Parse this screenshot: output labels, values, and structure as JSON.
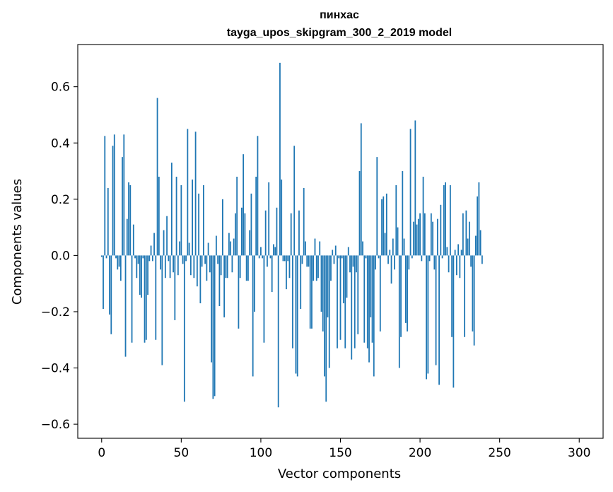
{
  "chart_data": {
    "type": "bar",
    "title": "пинхас",
    "subtitle": "tayga_upos_skipgram_300_2_2019 model",
    "xlabel": "Vector components",
    "ylabel": "Components values",
    "xlim": [
      -15,
      315
    ],
    "ylim": [
      -0.65,
      0.75
    ],
    "xticks": [
      0,
      50,
      100,
      150,
      200,
      250,
      300
    ],
    "xtick_labels": [
      "0",
      "50",
      "100",
      "150",
      "200",
      "250",
      "300"
    ],
    "yticks": [
      -0.6,
      -0.4,
      -0.2,
      0.0,
      0.2,
      0.4,
      0.6
    ],
    "ytick_labels": [
      "−0.6",
      "−0.4",
      "−0.2",
      "0.0",
      "0.2",
      "0.4",
      "0.6"
    ],
    "grid": false,
    "color": "#1f77b4",
    "values": [
      -0.005,
      -0.19,
      0.425,
      -0.01,
      0.24,
      -0.21,
      -0.28,
      0.39,
      0.43,
      -0.01,
      -0.05,
      -0.04,
      -0.09,
      0.35,
      0.43,
      -0.36,
      0.13,
      0.26,
      0.25,
      -0.31,
      0.11,
      -0.01,
      -0.08,
      -0.03,
      -0.14,
      -0.15,
      -0.01,
      -0.31,
      -0.3,
      -0.14,
      -0.02,
      0.035,
      -0.02,
      0.08,
      -0.3,
      0.56,
      0.28,
      -0.05,
      -0.39,
      0.09,
      -0.08,
      0.14,
      -0.02,
      -0.08,
      0.33,
      -0.06,
      -0.23,
      0.28,
      -0.07,
      0.05,
      0.25,
      -0.03,
      -0.52,
      -0.02,
      0.45,
      0.045,
      -0.07,
      0.27,
      -0.08,
      0.44,
      -0.11,
      0.22,
      -0.17,
      -0.04,
      0.25,
      -0.03,
      -0.09,
      0.045,
      -0.06,
      -0.38,
      -0.51,
      -0.5,
      0.07,
      -0.03,
      -0.18,
      -0.07,
      0.2,
      -0.22,
      -0.08,
      -0.08,
      0.08,
      0.05,
      -0.06,
      0.06,
      0.15,
      0.28,
      -0.26,
      -0.08,
      0.17,
      0.36,
      0.15,
      -0.09,
      -0.09,
      0.09,
      0.22,
      -0.43,
      -0.2,
      0.28,
      0.425,
      -0.01,
      0.03,
      -0.01,
      -0.31,
      0.16,
      -0.04,
      0.26,
      -0.01,
      -0.13,
      0.04,
      0.03,
      0.17,
      -0.54,
      0.685,
      0.27,
      -0.02,
      -0.02,
      -0.12,
      -0.02,
      -0.08,
      0.15,
      -0.33,
      0.39,
      -0.42,
      -0.43,
      0.16,
      -0.19,
      -0.03,
      0.24,
      0.05,
      -0.04,
      -0.04,
      -0.26,
      -0.26,
      -0.09,
      0.06,
      -0.09,
      -0.08,
      0.05,
      -0.2,
      -0.27,
      -0.43,
      -0.52,
      -0.22,
      -0.4,
      -0.09,
      0.02,
      -0.03,
      0.035,
      -0.33,
      -0.01,
      -0.3,
      -0.01,
      -0.17,
      -0.33,
      -0.15,
      0.03,
      -0.06,
      -0.37,
      -0.04,
      -0.33,
      -0.06,
      -0.28,
      0.3,
      0.47,
      0.05,
      -0.31,
      -0.01,
      -0.33,
      -0.38,
      -0.22,
      -0.31,
      -0.43,
      -0.05,
      0.35,
      -0.01,
      -0.27,
      0.2,
      0.21,
      0.08,
      0.22,
      -0.03,
      0.02,
      -0.1,
      0.06,
      -0.05,
      0.25,
      0.1,
      -0.4,
      -0.29,
      0.3,
      0.06,
      -0.24,
      -0.27,
      -0.05,
      0.45,
      -0.01,
      0.12,
      0.48,
      0.11,
      0.13,
      0.15,
      -0.02,
      0.28,
      0.15,
      -0.44,
      -0.42,
      -0.02,
      0.15,
      0.12,
      -0.05,
      -0.39,
      0.13,
      -0.46,
      0.18,
      -0.01,
      0.25,
      0.26,
      0.03,
      -0.06,
      0.25,
      -0.29,
      -0.47,
      0.02,
      -0.07,
      0.04,
      -0.08,
      0.02,
      0.15,
      -0.29,
      0.16,
      0.06,
      0.12,
      -0.04,
      -0.27,
      -0.32,
      0.07,
      0.21,
      0.26,
      0.09,
      -0.03
    ]
  }
}
